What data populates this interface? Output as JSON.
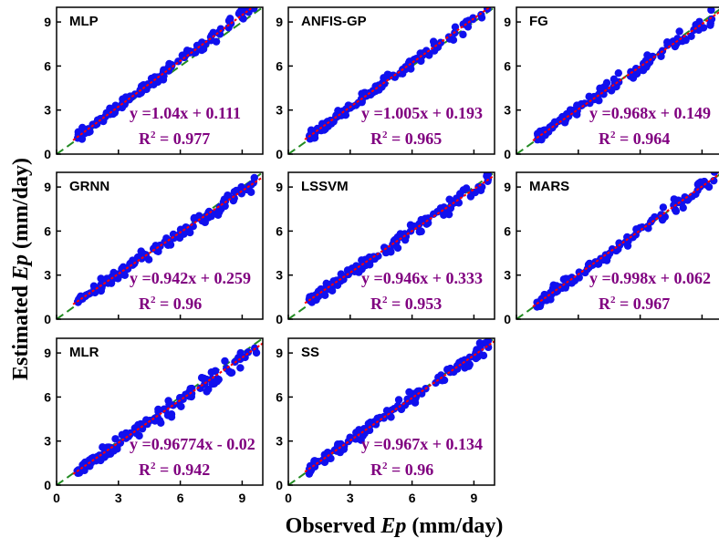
{
  "xlabel_prefix": "Observed ",
  "xlabel_var": "Ep",
  "xlabel_suffix": " (mm/day)",
  "ylabel_prefix": "Estimated ",
  "ylabel_var": "Ep",
  "ylabel_suffix": " (mm/day)",
  "colors": {
    "points": "#1010ee",
    "fit_line": "#ff0000",
    "ideal_line": "#228b22",
    "equation": "#800080"
  },
  "chart_data": [
    {
      "type": "scatter",
      "title": "MLP",
      "equation": "y =1.04x + 0.111",
      "r2_label": "R",
      "r2_sup": "2",
      "r2_value": " = 0.977",
      "slope": 1.04,
      "intercept": 0.111,
      "xlim": [
        0,
        10
      ],
      "ylim": [
        0,
        10
      ],
      "xticks": [
        "0",
        "3",
        "6",
        "9"
      ],
      "yticks": [
        "0",
        "3",
        "6",
        "9"
      ],
      "seed": 11,
      "noise": 0.25
    },
    {
      "type": "scatter",
      "title": "ANFIS-GP",
      "equation": "y =1.005x + 0.193",
      "r2_label": "R",
      "r2_sup": "2",
      "r2_value": " = 0.965",
      "slope": 1.005,
      "intercept": 0.193,
      "xlim": [
        0,
        10
      ],
      "ylim": [
        0,
        10
      ],
      "xticks": [
        "0",
        "3",
        "6",
        "9"
      ],
      "yticks": [
        "0",
        "3",
        "6",
        "9"
      ],
      "seed": 23,
      "noise": 0.3
    },
    {
      "type": "scatter",
      "title": "FG",
      "equation": "y =0.968x + 0.149",
      "r2_label": "R",
      "r2_sup": "2",
      "r2_value": " = 0.964",
      "slope": 0.968,
      "intercept": 0.149,
      "xlim": [
        0,
        10
      ],
      "ylim": [
        0,
        10
      ],
      "xticks": [
        "0",
        "3",
        "6",
        "9"
      ],
      "yticks": [
        "0",
        "3",
        "6",
        "9"
      ],
      "seed": 37,
      "noise": 0.3
    },
    {
      "type": "scatter",
      "title": "GRNN",
      "equation": "y =0.942x + 0.259",
      "r2_label": "R",
      "r2_sup": "2",
      "r2_value": " = 0.96",
      "slope": 0.942,
      "intercept": 0.259,
      "xlim": [
        0,
        10
      ],
      "ylim": [
        0,
        10
      ],
      "xticks": [
        "0",
        "3",
        "6",
        "9"
      ],
      "yticks": [
        "0",
        "3",
        "6",
        "9"
      ],
      "seed": 41,
      "noise": 0.3
    },
    {
      "type": "scatter",
      "title": "LSSVM",
      "equation": "y =0.946x + 0.333",
      "r2_label": "R",
      "r2_sup": "2",
      "r2_value": " = 0.953",
      "slope": 0.946,
      "intercept": 0.333,
      "xlim": [
        0,
        10
      ],
      "ylim": [
        0,
        10
      ],
      "xticks": [
        "0",
        "3",
        "6",
        "9"
      ],
      "yticks": [
        "0",
        "3",
        "6",
        "9"
      ],
      "seed": 53,
      "noise": 0.35
    },
    {
      "type": "scatter",
      "title": "MARS",
      "equation": "y =0.998x + 0.062",
      "r2_label": "R",
      "r2_sup": "2",
      "r2_value": " = 0.967",
      "slope": 0.998,
      "intercept": 0.062,
      "xlim": [
        0,
        10
      ],
      "ylim": [
        0,
        10
      ],
      "xticks": [
        "0",
        "3",
        "6",
        "9"
      ],
      "yticks": [
        "0",
        "3",
        "6",
        "9"
      ],
      "seed": 67,
      "noise": 0.3
    },
    {
      "type": "scatter",
      "title": "MLR",
      "equation": "y =0.96774x - 0.02",
      "r2_label": "R",
      "r2_sup": "2",
      "r2_value": " = 0.942",
      "slope": 0.96774,
      "intercept": -0.02,
      "xlim": [
        0,
        10
      ],
      "ylim": [
        0,
        10
      ],
      "xticks": [
        "0",
        "3",
        "6",
        "9"
      ],
      "yticks": [
        "0",
        "3",
        "6",
        "9"
      ],
      "seed": 79,
      "noise": 0.4
    },
    {
      "type": "scatter",
      "title": "SS",
      "equation": "y =0.967x + 0.134",
      "r2_label": "R",
      "r2_sup": "2",
      "r2_value": " = 0.96",
      "slope": 0.967,
      "intercept": 0.134,
      "xlim": [
        0,
        10
      ],
      "ylim": [
        0,
        10
      ],
      "xticks": [
        "0",
        "3",
        "6",
        "9"
      ],
      "yticks": [
        "0",
        "3",
        "6",
        "9"
      ],
      "seed": 97,
      "noise": 0.3
    }
  ]
}
